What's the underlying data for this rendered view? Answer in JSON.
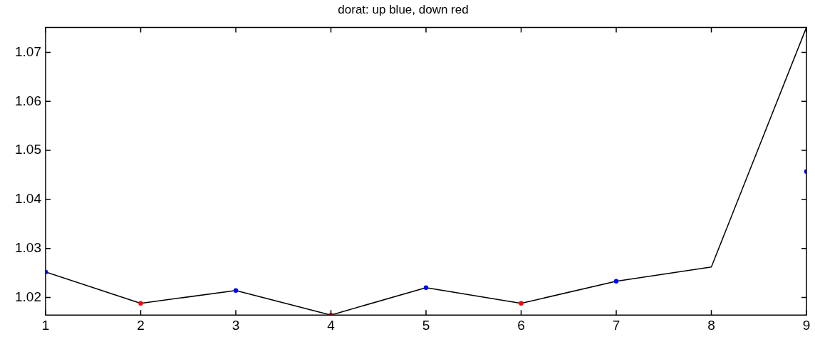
{
  "chart_data": {
    "type": "line",
    "title": "dorat: up blue, down red",
    "xlim": [
      1,
      9
    ],
    "xticks": [
      1,
      2,
      3,
      4,
      5,
      6,
      7,
      8,
      9
    ],
    "ylim": [
      1.0164,
      1.0751
    ],
    "yticks": [
      1.02,
      1.03,
      1.04,
      1.05,
      1.06,
      1.07
    ],
    "grid": false,
    "legend": false,
    "line_style": "solid",
    "series": [
      {
        "color": "#000000",
        "marker": "none",
        "x": [
          1,
          2,
          3,
          4,
          5,
          6,
          7,
          8,
          9
        ],
        "values": [
          1.0252,
          1.0188,
          1.0214,
          1.0164,
          1.022,
          1.0188,
          1.0233,
          1.0262,
          1.0751
        ]
      },
      {
        "type": "scatter",
        "marker": "circle",
        "color": "#0000ff",
        "x": [
          1,
          3,
          5,
          7,
          9
        ],
        "values": [
          1.0252,
          1.0214,
          1.022,
          1.0233,
          1.0457
        ]
      },
      {
        "type": "scatter",
        "marker": "circle",
        "color": "#ff0000",
        "x": [
          2,
          4,
          6
        ],
        "values": [
          1.0188,
          1.0164,
          1.0188
        ]
      }
    ]
  }
}
